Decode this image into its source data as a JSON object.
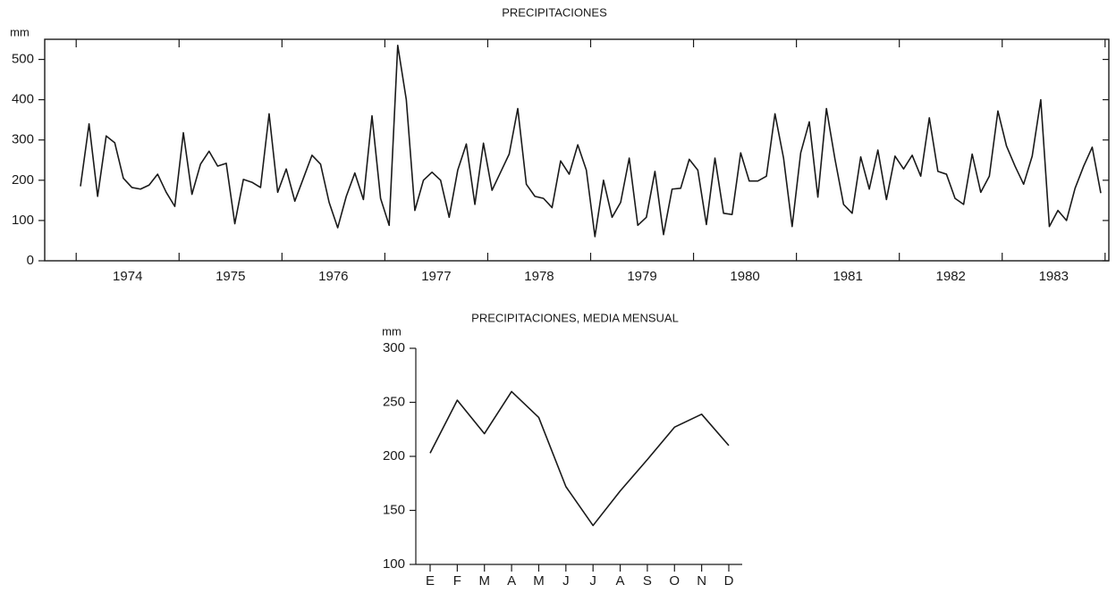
{
  "chart_data": [
    {
      "type": "line",
      "title": "PRECIPITACIONES",
      "y_label": "mm",
      "color": "#1a1a1a",
      "categories": [
        null,
        null,
        null,
        null,
        null,
        null,
        "1974",
        null,
        null,
        null,
        null,
        null,
        null,
        null,
        null,
        null,
        null,
        null,
        "1975",
        null,
        null,
        null,
        null,
        null,
        null,
        null,
        null,
        null,
        null,
        null,
        "1976",
        null,
        null,
        null,
        null,
        null,
        null,
        null,
        null,
        null,
        null,
        null,
        "1977",
        null,
        null,
        null,
        null,
        null,
        null,
        null,
        null,
        null,
        null,
        null,
        "1978",
        null,
        null,
        null,
        null,
        null,
        null,
        null,
        null,
        null,
        null,
        null,
        "1979",
        null,
        null,
        null,
        null,
        null,
        null,
        null,
        null,
        null,
        null,
        null,
        "1980",
        null,
        null,
        null,
        null,
        null,
        null,
        null,
        null,
        null,
        null,
        null,
        "1981",
        null,
        null,
        null,
        null,
        null,
        null,
        null,
        null,
        null,
        null,
        null,
        "1982",
        null,
        null,
        null,
        null,
        null,
        null,
        null,
        null,
        null,
        null,
        null,
        "1983",
        null,
        null,
        null,
        null,
        null
      ],
      "values": [
        185,
        340,
        160,
        310,
        293,
        205,
        182,
        178,
        188,
        215,
        170,
        135,
        318,
        165,
        240,
        272,
        235,
        242,
        92,
        202,
        195,
        182,
        365,
        170,
        228,
        148,
        205,
        262,
        240,
        145,
        82,
        160,
        218,
        152,
        360,
        155,
        88,
        535,
        400,
        125,
        200,
        220,
        200,
        108,
        225,
        290,
        140,
        292,
        175,
        220,
        265,
        378,
        190,
        160,
        155,
        132,
        248,
        215,
        288,
        225,
        60,
        200,
        108,
        145,
        255,
        88,
        108,
        222,
        65,
        178,
        180,
        252,
        225,
        90,
        255,
        118,
        115,
        268,
        198,
        198,
        210,
        365,
        255,
        85,
        268,
        345,
        158,
        378,
        252,
        140,
        118,
        258,
        178,
        275,
        152,
        260,
        228,
        262,
        210,
        355,
        222,
        215,
        155,
        140,
        265,
        170,
        210,
        372,
        285,
        235,
        190,
        260,
        400,
        85,
        125,
        100,
        180,
        235,
        282,
        168
      ],
      "ylim": [
        0,
        550
      ],
      "yticks": [
        0,
        100,
        200,
        300,
        400,
        500
      ]
    },
    {
      "type": "line",
      "title": "PRECIPITACIONES, MEDIA MENSUAL",
      "y_label": "mm",
      "color": "#1a1a1a",
      "categories": [
        "E",
        "F",
        "M",
        "A",
        "M",
        "J",
        "J",
        "A",
        "S",
        "O",
        "N",
        "D"
      ],
      "values": [
        203,
        252,
        221,
        260,
        236,
        172,
        136,
        168,
        197,
        227,
        239,
        210
      ],
      "ylim": [
        100,
        300
      ],
      "yticks": [
        100,
        150,
        200,
        250,
        300
      ]
    }
  ]
}
